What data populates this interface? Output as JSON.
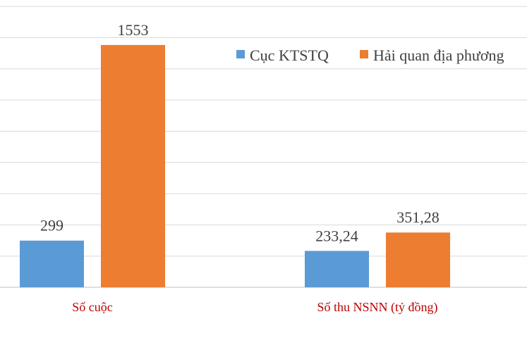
{
  "chart_data": {
    "type": "bar",
    "categories": [
      "Số cuộc",
      "Số thu NSNN (tỷ đồng)"
    ],
    "series": [
      {
        "name": "Cục KTSTQ",
        "values": [
          299,
          233.24
        ],
        "labels": [
          "299",
          "233,24"
        ],
        "color": "#5b9bd5"
      },
      {
        "name": "Hải quan địa phương",
        "values": [
          1553,
          351.28
        ],
        "labels": [
          "1553",
          "351,28"
        ],
        "color": "#ed7d31"
      }
    ],
    "legend_position": "top-right",
    "grid": true,
    "category_label_color": "#c00000"
  }
}
